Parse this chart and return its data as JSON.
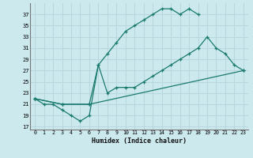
{
  "xlabel": "Humidex (Indice chaleur)",
  "bg_color": "#cce9ee",
  "line_color": "#1a7a6e",
  "grid_color": "#b8d8dd",
  "xlim": [
    -0.5,
    23.5
  ],
  "ylim": [
    16.5,
    39.0
  ],
  "xticks": [
    0,
    1,
    2,
    3,
    4,
    5,
    6,
    7,
    8,
    9,
    10,
    11,
    12,
    13,
    14,
    15,
    16,
    17,
    18,
    19,
    20,
    21,
    22,
    23
  ],
  "yticks": [
    17,
    19,
    21,
    23,
    25,
    27,
    29,
    31,
    33,
    35,
    37
  ],
  "curve1_x": [
    0,
    1,
    2,
    3,
    4,
    5,
    6,
    7,
    8,
    9,
    10,
    11,
    12,
    13,
    14,
    15,
    16,
    17,
    18
  ],
  "curve1_y": [
    22,
    21,
    21,
    20,
    19,
    18,
    19,
    28,
    30,
    32,
    34,
    35,
    36,
    37,
    38,
    38,
    37,
    38,
    37
  ],
  "curve2_x": [
    0,
    3,
    6,
    7,
    8,
    9,
    10,
    11,
    12,
    13,
    14,
    15,
    16,
    17,
    18,
    19,
    20,
    21,
    22,
    23
  ],
  "curve2_y": [
    22,
    21,
    21,
    28,
    23,
    24,
    24,
    24,
    25,
    26,
    27,
    28,
    29,
    30,
    31,
    33,
    31,
    30,
    28,
    27
  ],
  "curve3_x": [
    0,
    3,
    6,
    23
  ],
  "curve3_y": [
    22,
    21,
    21,
    27
  ]
}
